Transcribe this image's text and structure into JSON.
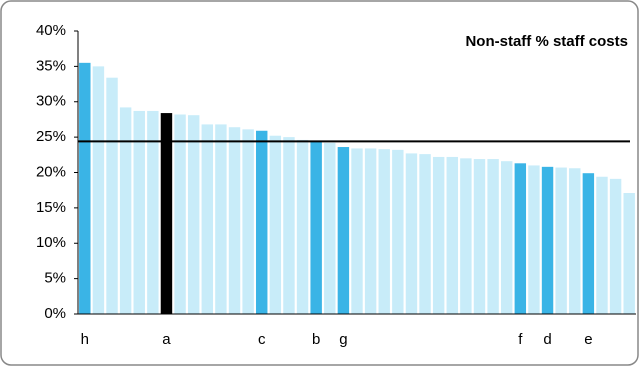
{
  "chart_data": {
    "type": "bar",
    "title": "Non-staff % staff costs",
    "categories": [
      "h",
      null,
      null,
      null,
      null,
      null,
      "a",
      null,
      null,
      null,
      null,
      null,
      null,
      "c",
      null,
      null,
      null,
      "b",
      null,
      "g",
      null,
      null,
      null,
      null,
      null,
      null,
      null,
      null,
      null,
      null,
      null,
      null,
      "f",
      null,
      "d",
      null,
      null,
      "e",
      null,
      null,
      null
    ],
    "values": [
      35.5,
      35.0,
      33.4,
      29.2,
      28.7,
      28.7,
      28.4,
      28.2,
      28.1,
      26.8,
      26.8,
      26.4,
      26.1,
      25.9,
      25.2,
      25.0,
      24.6,
      24.4,
      24.2,
      23.6,
      23.4,
      23.4,
      23.3,
      23.2,
      22.7,
      22.6,
      22.2,
      22.2,
      22.0,
      21.9,
      21.9,
      21.6,
      21.3,
      21.0,
      20.8,
      20.7,
      20.6,
      19.9,
      19.4,
      19.1,
      17.1
    ],
    "colors": [
      "#3ab4e6",
      "#c8ecf9",
      "#c8ecf9",
      "#c8ecf9",
      "#c8ecf9",
      "#c8ecf9",
      "#000000",
      "#c8ecf9",
      "#c8ecf9",
      "#c8ecf9",
      "#c8ecf9",
      "#c8ecf9",
      "#c8ecf9",
      "#3ab4e6",
      "#c8ecf9",
      "#c8ecf9",
      "#c8ecf9",
      "#3ab4e6",
      "#c8ecf9",
      "#3ab4e6",
      "#c8ecf9",
      "#c8ecf9",
      "#c8ecf9",
      "#c8ecf9",
      "#c8ecf9",
      "#c8ecf9",
      "#c8ecf9",
      "#c8ecf9",
      "#c8ecf9",
      "#c8ecf9",
      "#c8ecf9",
      "#c8ecf9",
      "#3ab4e6",
      "#c8ecf9",
      "#3ab4e6",
      "#c8ecf9",
      "#c8ecf9",
      "#3ab4e6",
      "#c8ecf9",
      "#c8ecf9",
      "#c8ecf9"
    ],
    "reference_line": 24.4,
    "ylim": [
      0,
      40
    ],
    "yticks": [
      {
        "value": 0,
        "label": "0%"
      },
      {
        "value": 5,
        "label": "5%"
      },
      {
        "value": 10,
        "label": "10%"
      },
      {
        "value": 15,
        "label": "15%"
      },
      {
        "value": 20,
        "label": "20%"
      },
      {
        "value": 25,
        "label": "25%"
      },
      {
        "value": 30,
        "label": "30%"
      },
      {
        "value": 35,
        "label": "35%"
      },
      {
        "value": 40,
        "label": "40%"
      }
    ],
    "grid": false
  }
}
